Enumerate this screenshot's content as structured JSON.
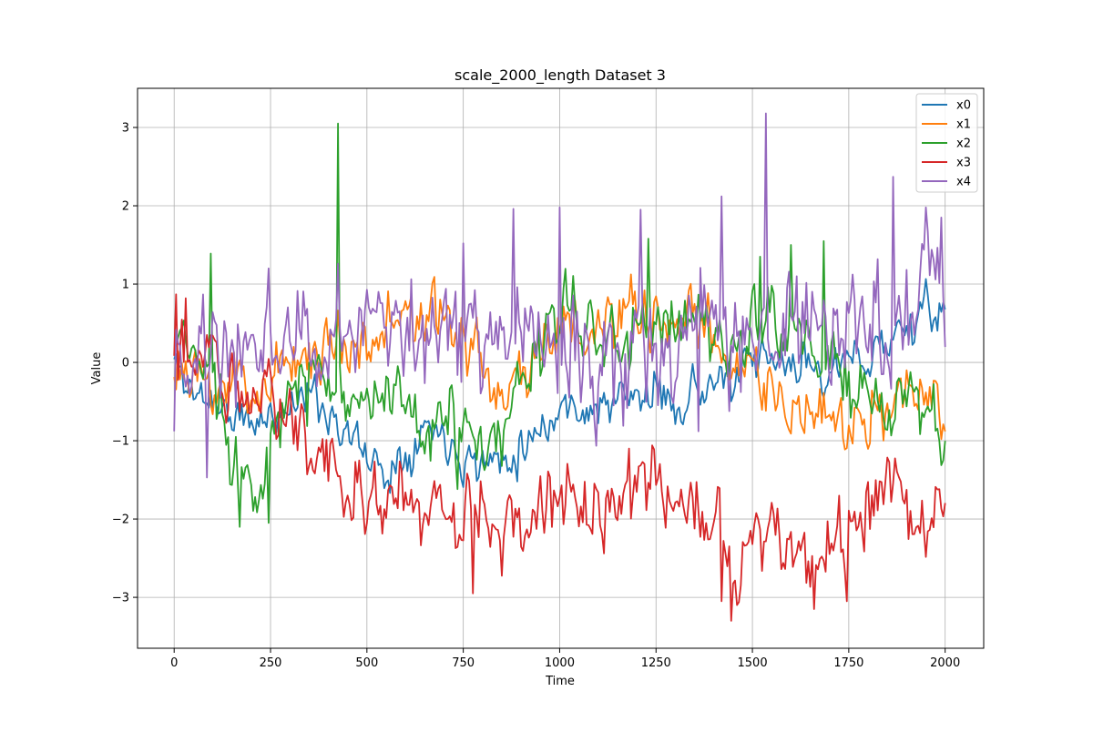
{
  "chart_data": {
    "type": "line",
    "title": "scale_2000_length Dataset 3",
    "xlabel": "Time",
    "ylabel": "Value",
    "xlim": [
      -95,
      2100
    ],
    "ylim": [
      -3.65,
      3.5
    ],
    "grid": true,
    "legend_position": "top-right",
    "x_ticks": [
      0,
      250,
      500,
      750,
      1000,
      1250,
      1500,
      1750,
      2000
    ],
    "x_tick_labels": [
      "0",
      "250",
      "500",
      "750",
      "1000",
      "1250",
      "1500",
      "1750",
      "2000"
    ],
    "y_ticks": [
      -3,
      -2,
      -1,
      0,
      1,
      2,
      3
    ],
    "y_tick_labels": [
      "−3",
      "−2",
      "−1",
      "0",
      "1",
      "2",
      "3"
    ],
    "x": {
      "start": 0,
      "end": 2000,
      "step": 5
    },
    "series": [
      {
        "name": "x0",
        "color": "#1f77b4",
        "waypoints": [
          [
            0,
            0.0
          ],
          [
            50,
            -0.4
          ],
          [
            100,
            -0.45
          ],
          [
            150,
            -0.7
          ],
          [
            200,
            -0.8
          ],
          [
            250,
            -0.7
          ],
          [
            300,
            -0.5
          ],
          [
            350,
            -0.4
          ],
          [
            400,
            -0.6
          ],
          [
            450,
            -0.9
          ],
          [
            500,
            -1.2
          ],
          [
            550,
            -1.4
          ],
          [
            600,
            -1.1
          ],
          [
            650,
            -0.8
          ],
          [
            700,
            -0.9
          ],
          [
            750,
            -1.15
          ],
          [
            800,
            -1.3
          ],
          [
            850,
            -1.2
          ],
          [
            900,
            -1.05
          ],
          [
            950,
            -0.8
          ],
          [
            1000,
            -0.6
          ],
          [
            1050,
            -0.55
          ],
          [
            1100,
            -0.6
          ],
          [
            1150,
            -0.5
          ],
          [
            1200,
            -0.45
          ],
          [
            1250,
            -0.4
          ],
          [
            1300,
            -0.5
          ],
          [
            1350,
            -0.35
          ],
          [
            1400,
            -0.25
          ],
          [
            1450,
            -0.3
          ],
          [
            1500,
            -0.05
          ],
          [
            1550,
            0.0
          ],
          [
            1600,
            -0.05
          ],
          [
            1650,
            0.0
          ],
          [
            1700,
            -0.1
          ],
          [
            1750,
            -0.05
          ],
          [
            1800,
            0.1
          ],
          [
            1850,
            0.3
          ],
          [
            1900,
            0.45
          ],
          [
            1950,
            0.6
          ],
          [
            2000,
            0.65
          ]
        ],
        "noise": 0.18,
        "seed": 11
      },
      {
        "name": "x1",
        "color": "#ff7f0e",
        "waypoints": [
          [
            0,
            0.1
          ],
          [
            50,
            -0.4
          ],
          [
            100,
            -0.3
          ],
          [
            150,
            -0.25
          ],
          [
            200,
            -0.3
          ],
          [
            250,
            -0.25
          ],
          [
            300,
            0.1
          ],
          [
            350,
            0.1
          ],
          [
            400,
            0.2
          ],
          [
            450,
            0.3
          ],
          [
            500,
            0.35
          ],
          [
            550,
            0.4
          ],
          [
            600,
            0.6
          ],
          [
            650,
            0.55
          ],
          [
            700,
            0.4
          ],
          [
            750,
            0.45
          ],
          [
            800,
            -0.1
          ],
          [
            850,
            -0.3
          ],
          [
            900,
            -0.2
          ],
          [
            950,
            0.3
          ],
          [
            1000,
            0.45
          ],
          [
            1050,
            0.4
          ],
          [
            1100,
            0.35
          ],
          [
            1150,
            0.45
          ],
          [
            1200,
            0.5
          ],
          [
            1250,
            0.6
          ],
          [
            1300,
            0.55
          ],
          [
            1350,
            0.45
          ],
          [
            1400,
            0.2
          ],
          [
            1450,
            0.1
          ],
          [
            1500,
            -0.05
          ],
          [
            1550,
            -0.3
          ],
          [
            1600,
            -0.6
          ],
          [
            1650,
            -0.85
          ],
          [
            1700,
            -0.9
          ],
          [
            1750,
            -0.8
          ],
          [
            1800,
            -0.7
          ],
          [
            1850,
            -0.5
          ],
          [
            1900,
            -0.45
          ],
          [
            1950,
            -0.6
          ],
          [
            2000,
            -0.75
          ]
        ],
        "noise": 0.27,
        "seed": 23
      },
      {
        "name": "x2",
        "color": "#2ca02c",
        "waypoints": [
          [
            0,
            0.2
          ],
          [
            50,
            0.1
          ],
          [
            100,
            -0.2
          ],
          [
            150,
            -1.1
          ],
          [
            200,
            -1.4
          ],
          [
            250,
            -1.15
          ],
          [
            300,
            -0.5
          ],
          [
            350,
            -0.25
          ],
          [
            400,
            -0.1
          ],
          [
            450,
            -0.3
          ],
          [
            500,
            -0.4
          ],
          [
            550,
            -0.5
          ],
          [
            600,
            -0.8
          ],
          [
            650,
            -1.0
          ],
          [
            700,
            -0.7
          ],
          [
            750,
            -0.9
          ],
          [
            800,
            -1.3
          ],
          [
            850,
            -1.05
          ],
          [
            900,
            -0.3
          ],
          [
            950,
            0.3
          ],
          [
            1000,
            0.5
          ],
          [
            1050,
            0.6
          ],
          [
            1100,
            0.5
          ],
          [
            1150,
            0.1
          ],
          [
            1200,
            0.3
          ],
          [
            1250,
            0.6
          ],
          [
            1300,
            0.55
          ],
          [
            1350,
            0.5
          ],
          [
            1400,
            0.4
          ],
          [
            1450,
            0.2
          ],
          [
            1500,
            0.5
          ],
          [
            1550,
            0.6
          ],
          [
            1600,
            0.5
          ],
          [
            1650,
            0.2
          ],
          [
            1700,
            -0.1
          ],
          [
            1750,
            -0.35
          ],
          [
            1800,
            -0.5
          ],
          [
            1850,
            -0.6
          ],
          [
            1900,
            -0.5
          ],
          [
            1950,
            -0.7
          ],
          [
            2000,
            -0.9
          ]
        ],
        "noise": 0.3,
        "seed": 37,
        "spikes": [
          [
            425,
            3.05
          ],
          [
            95,
            1.39
          ],
          [
            170,
            -2.1
          ],
          [
            245,
            -2.05
          ],
          [
            1230,
            1.58
          ],
          [
            1520,
            1.35
          ],
          [
            1600,
            1.5
          ],
          [
            1685,
            1.55
          ]
        ]
      },
      {
        "name": "x3",
        "color": "#d62728",
        "waypoints": [
          [
            0,
            0.5
          ],
          [
            50,
            -0.1
          ],
          [
            100,
            0.2
          ],
          [
            150,
            -0.2
          ],
          [
            200,
            -0.6
          ],
          [
            250,
            -0.3
          ],
          [
            300,
            -0.7
          ],
          [
            350,
            -0.9
          ],
          [
            400,
            -1.1
          ],
          [
            450,
            -1.4
          ],
          [
            500,
            -1.6
          ],
          [
            550,
            -1.8
          ],
          [
            600,
            -1.95
          ],
          [
            650,
            -1.9
          ],
          [
            700,
            -2.0
          ],
          [
            750,
            -2.1
          ],
          [
            800,
            -1.9
          ],
          [
            850,
            -2.0
          ],
          [
            900,
            -1.9
          ],
          [
            950,
            -1.8
          ],
          [
            1000,
            -1.75
          ],
          [
            1050,
            -1.9
          ],
          [
            1100,
            -1.85
          ],
          [
            1150,
            -1.7
          ],
          [
            1200,
            -1.6
          ],
          [
            1250,
            -1.7
          ],
          [
            1300,
            -1.8
          ],
          [
            1350,
            -2.1
          ],
          [
            1400,
            -2.0
          ],
          [
            1450,
            -2.5
          ],
          [
            1500,
            -2.3
          ],
          [
            1550,
            -2.2
          ],
          [
            1600,
            -2.45
          ],
          [
            1650,
            -2.5
          ],
          [
            1700,
            -2.35
          ],
          [
            1750,
            -2.3
          ],
          [
            1800,
            -1.8
          ],
          [
            1850,
            -1.6
          ],
          [
            1900,
            -1.9
          ],
          [
            1950,
            -2.0
          ],
          [
            2000,
            -1.7
          ]
        ],
        "noise": 0.32,
        "seed": 51,
        "spikes": [
          [
            1445,
            -3.3
          ],
          [
            1420,
            -3.05
          ],
          [
            775,
            -2.95
          ],
          [
            1660,
            -3.15
          ],
          [
            1745,
            -3.05
          ],
          [
            5,
            0.87
          ],
          [
            30,
            0.82
          ]
        ]
      },
      {
        "name": "x4",
        "color": "#9467bd",
        "waypoints": [
          [
            0,
            0.1
          ],
          [
            50,
            0.0
          ],
          [
            100,
            0.05
          ],
          [
            150,
            0.2
          ],
          [
            200,
            0.3
          ],
          [
            250,
            0.4
          ],
          [
            300,
            0.3
          ],
          [
            350,
            0.1
          ],
          [
            400,
            0.4
          ],
          [
            450,
            0.3
          ],
          [
            500,
            0.2
          ],
          [
            550,
            0.15
          ],
          [
            600,
            0.4
          ],
          [
            650,
            0.35
          ],
          [
            700,
            0.3
          ],
          [
            750,
            0.45
          ],
          [
            800,
            0.35
          ],
          [
            850,
            0.25
          ],
          [
            900,
            0.5
          ],
          [
            950,
            0.45
          ],
          [
            1000,
            0.25
          ],
          [
            1050,
            0.1
          ],
          [
            1100,
            0.05
          ],
          [
            1150,
            0.1
          ],
          [
            1200,
            0.2
          ],
          [
            1250,
            0.35
          ],
          [
            1300,
            0.4
          ],
          [
            1350,
            0.5
          ],
          [
            1400,
            0.55
          ],
          [
            1450,
            0.4
          ],
          [
            1500,
            0.35
          ],
          [
            1550,
            0.3
          ],
          [
            1600,
            0.25
          ],
          [
            1650,
            0.3
          ],
          [
            1700,
            0.35
          ],
          [
            1750,
            0.3
          ],
          [
            1800,
            0.4
          ],
          [
            1850,
            0.55
          ],
          [
            1900,
            0.7
          ],
          [
            1950,
            0.85
          ],
          [
            2000,
            1.0
          ]
        ],
        "noise": 0.45,
        "seed": 67,
        "spikes": [
          [
            1535,
            3.18
          ],
          [
            1420,
            2.12
          ],
          [
            1865,
            2.37
          ],
          [
            1000,
            1.98
          ],
          [
            1210,
            1.95
          ],
          [
            1950,
            1.98
          ],
          [
            1990,
            1.85
          ],
          [
            880,
            1.96
          ],
          [
            750,
            1.52
          ],
          [
            425,
            1.26
          ],
          [
            245,
            1.2
          ],
          [
            85,
            -1.47
          ],
          [
            0,
            -0.88
          ],
          [
            1360,
            -0.88
          ],
          [
            1140,
            -0.55
          ]
        ]
      }
    ]
  }
}
